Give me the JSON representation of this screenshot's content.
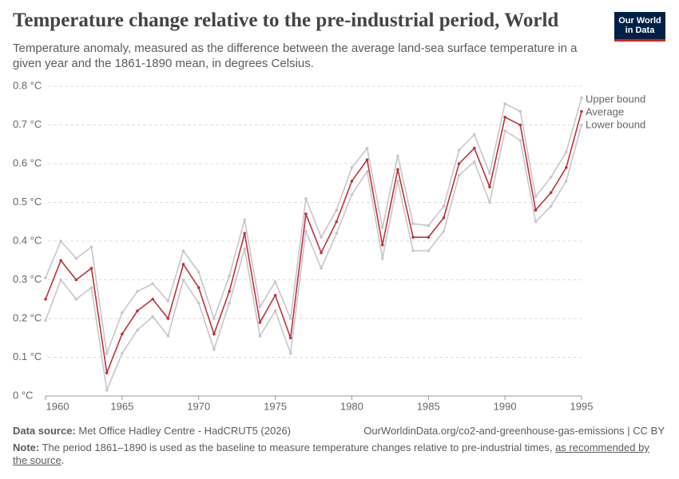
{
  "header": {
    "title": "Temperature change relative to the pre-industrial period, World",
    "subtitle": "Temperature anomaly, measured as the difference between the average land-sea surface temperature in a given year and the 1861-1890 mean, in degrees Celsius.",
    "logo": [
      "Our World",
      "in Data"
    ]
  },
  "chart_data": {
    "type": "line",
    "x": [
      1960,
      1961,
      1962,
      1963,
      1964,
      1965,
      1966,
      1967,
      1968,
      1969,
      1970,
      1971,
      1972,
      1973,
      1974,
      1975,
      1976,
      1977,
      1978,
      1979,
      1980,
      1981,
      1982,
      1983,
      1984,
      1985,
      1986,
      1987,
      1988,
      1989,
      1990,
      1991,
      1992,
      1993,
      1994,
      1995
    ],
    "series": [
      {
        "name": "Upper bound",
        "color": "#c6c6cb",
        "values": [
          0.305,
          0.4,
          0.355,
          0.385,
          0.11,
          0.215,
          0.27,
          0.29,
          0.245,
          0.375,
          0.32,
          0.2,
          0.31,
          0.455,
          0.23,
          0.295,
          0.2,
          0.51,
          0.41,
          0.48,
          0.59,
          0.64,
          0.435,
          0.62,
          0.445,
          0.44,
          0.49,
          0.635,
          0.675,
          0.575,
          0.755,
          0.735,
          0.515,
          0.565,
          0.63,
          0.77
        ]
      },
      {
        "name": "Average",
        "color": "#c0313a",
        "values": [
          0.25,
          0.35,
          0.3,
          0.33,
          0.06,
          0.16,
          0.22,
          0.25,
          0.2,
          0.34,
          0.28,
          0.16,
          0.27,
          0.42,
          0.19,
          0.26,
          0.15,
          0.47,
          0.37,
          0.45,
          0.555,
          0.61,
          0.39,
          0.585,
          0.41,
          0.41,
          0.46,
          0.6,
          0.64,
          0.54,
          0.72,
          0.7,
          0.48,
          0.525,
          0.59,
          0.735
        ]
      },
      {
        "name": "Lower bound",
        "color": "#c6c6cb",
        "values": [
          0.195,
          0.3,
          0.25,
          0.28,
          0.015,
          0.11,
          0.17,
          0.205,
          0.155,
          0.3,
          0.24,
          0.12,
          0.24,
          0.38,
          0.155,
          0.22,
          0.11,
          0.425,
          0.33,
          0.42,
          0.52,
          0.58,
          0.355,
          0.555,
          0.375,
          0.375,
          0.425,
          0.57,
          0.605,
          0.5,
          0.685,
          0.66,
          0.45,
          0.49,
          0.555,
          0.7
        ]
      }
    ],
    "xlim": [
      1960,
      1995
    ],
    "xticks": [
      1960,
      1965,
      1970,
      1975,
      1980,
      1985,
      1990,
      1995
    ],
    "ylim": [
      0,
      0.8
    ],
    "yticks": [
      {
        "value": 0,
        "label": "0 °C"
      },
      {
        "value": 0.1,
        "label": "0.1 °C"
      },
      {
        "value": 0.2,
        "label": "0.2 °C"
      },
      {
        "value": 0.3,
        "label": "0.3 °C"
      },
      {
        "value": 0.4,
        "label": "0.4 °C"
      },
      {
        "value": 0.5,
        "label": "0.5 °C"
      },
      {
        "value": 0.6,
        "label": "0.6 °C"
      },
      {
        "value": 0.7,
        "label": "0.7 °C"
      },
      {
        "value": 0.8,
        "label": "0.8 °C"
      }
    ],
    "grid": true
  },
  "footer": {
    "source_label": "Data source:",
    "source": "Met Office Hadley Centre - HadCRUT5 (2026)",
    "url": "OurWorldinData.org/co2-and-greenhouse-gas-emissions | CC BY",
    "note_label": "Note:",
    "note": "The period 1861–1890 is used as the baseline to measure temperature changes relative to pre-industrial times,",
    "note_link": "as recommended by the source",
    "note_end": "."
  }
}
